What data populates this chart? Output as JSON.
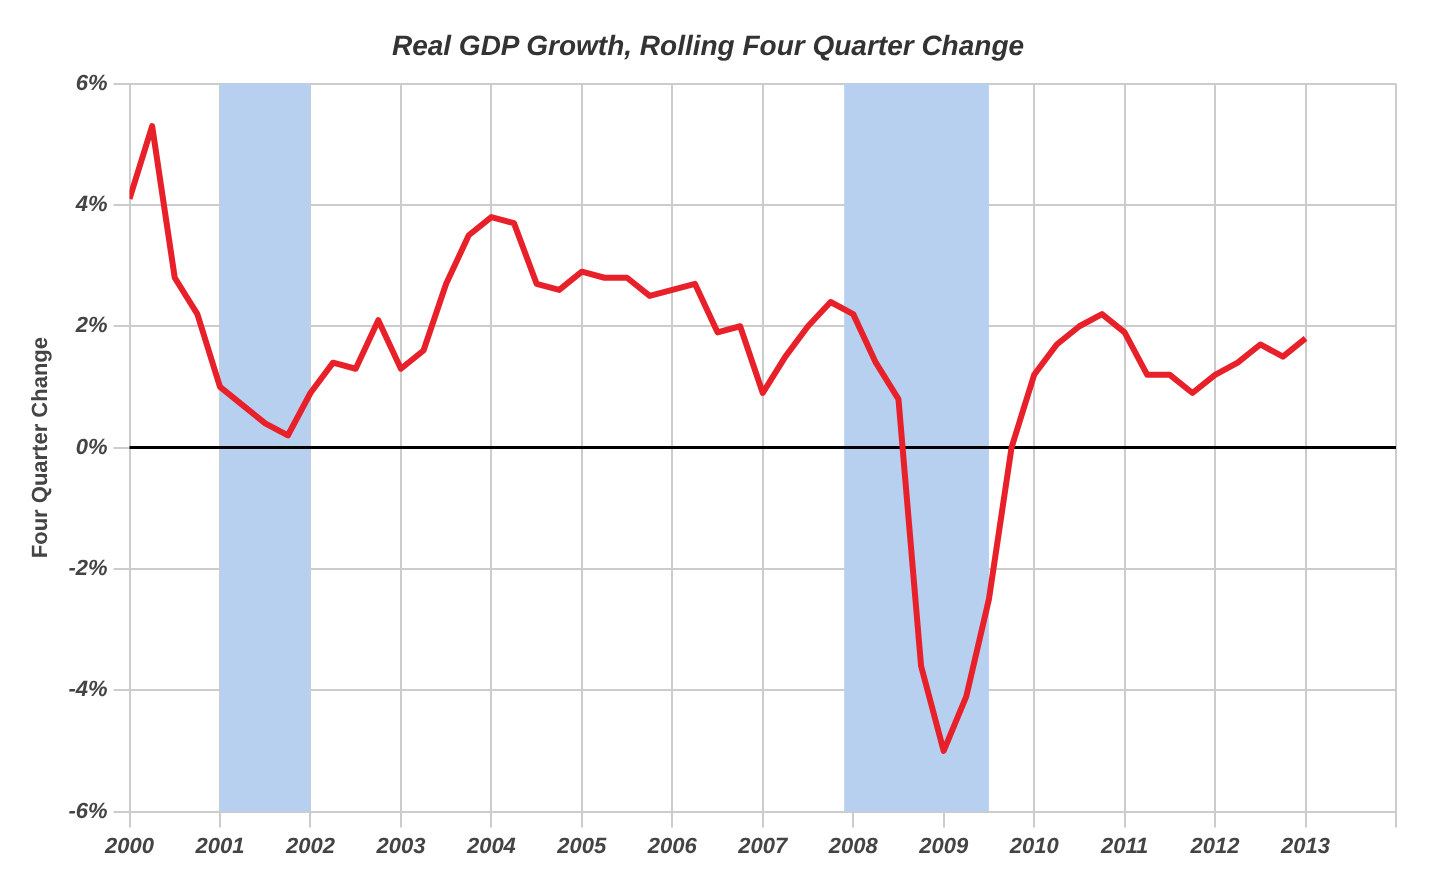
{
  "chart_data": {
    "type": "line",
    "title": "Real GDP Growth, Rolling Four Quarter Change",
    "ylabel": "Four Quarter Change",
    "x": [
      2000,
      2000.25,
      2000.5,
      2000.75,
      2001,
      2001.25,
      2001.5,
      2001.75,
      2002,
      2002.25,
      2002.5,
      2002.75,
      2003,
      2003.25,
      2003.5,
      2003.75,
      2004,
      2004.25,
      2004.5,
      2004.75,
      2005,
      2005.25,
      2005.5,
      2005.75,
      2006,
      2006.25,
      2006.5,
      2006.75,
      2007,
      2007.25,
      2007.5,
      2007.75,
      2008,
      2008.25,
      2008.5,
      2008.75,
      2009,
      2009.25,
      2009.5,
      2009.75,
      2010,
      2010.25,
      2010.5,
      2010.75,
      2011,
      2011.25,
      2011.5,
      2011.75,
      2012,
      2012.25,
      2012.5,
      2012.75,
      2013
    ],
    "series": [
      {
        "color": "#e8202a",
        "values": [
          4.1,
          5.3,
          2.8,
          2.2,
          1.0,
          0.7,
          0.4,
          0.2,
          0.9,
          1.4,
          1.3,
          2.1,
          1.3,
          1.6,
          2.7,
          3.5,
          3.8,
          3.7,
          2.7,
          2.6,
          2.9,
          2.8,
          2.8,
          2.5,
          2.6,
          2.7,
          1.9,
          2.0,
          0.9,
          1.5,
          2.0,
          2.4,
          2.2,
          1.4,
          0.8,
          -3.6,
          -5.0,
          -4.1,
          -2.5,
          0.0,
          1.2,
          1.7,
          2.0,
          2.2,
          1.9,
          1.2,
          1.2,
          0.9,
          1.2,
          1.4,
          1.7,
          1.5,
          1.8
        ]
      }
    ],
    "xlim": [
      2000,
      2014
    ],
    "xticks": [
      2000,
      2001,
      2002,
      2003,
      2004,
      2005,
      2006,
      2007,
      2008,
      2009,
      2010,
      2011,
      2012,
      2013,
      {
        "value": 2014,
        "label": null
      }
    ],
    "ylim": [
      -6,
      6
    ],
    "yticks": [
      {
        "value": -6,
        "label": "-6%"
      },
      {
        "value": -4,
        "label": "-4%"
      },
      {
        "value": -2,
        "label": "-2%"
      },
      {
        "value": 0,
        "label": "0%"
      },
      {
        "value": 2,
        "label": "2%"
      },
      {
        "value": 4,
        "label": "4%"
      },
      {
        "value": 6,
        "label": "6%"
      }
    ],
    "bands": [
      {
        "axis": "x",
        "from": 2001,
        "to": 2002,
        "color": "#b8d0f0"
      },
      {
        "axis": "x",
        "from": 2007.9,
        "to": 2009.5,
        "color": "#b8d0f0"
      }
    ],
    "ref_lines": [
      {
        "axis": "y",
        "value": 0,
        "color": "#000000"
      }
    ],
    "grid": true,
    "legend": false,
    "marker": "none",
    "line_style": "solid"
  }
}
